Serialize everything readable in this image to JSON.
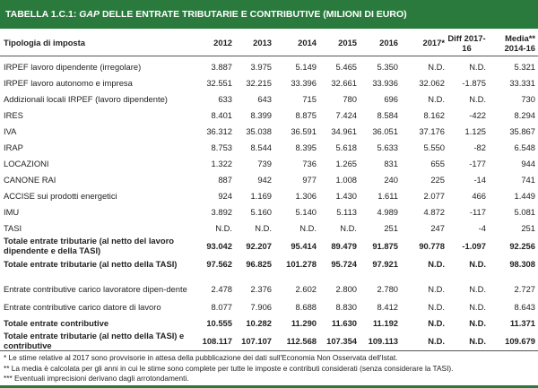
{
  "title": {
    "prefix": "TABELLA 1.C.1: ",
    "italic": "GAP",
    "rest": " DELLE ENTRATE TRIBUTARIE E CONTRIBUTIVE (MILIONI DI EURO)"
  },
  "headers": [
    "Tipologia di imposta",
    "2012",
    "2013",
    "2014",
    "2015",
    "2016",
    "2017*",
    "Diff 2017-16",
    "Media** 2014-16"
  ],
  "rows": [
    {
      "label": "IRPEF lavoro dipendente (irregolare)",
      "values": [
        "3.887",
        "3.975",
        "5.149",
        "5.465",
        "5.350",
        "N.D.",
        "N.D.",
        "5.321"
      ]
    },
    {
      "label": "IRPEF lavoro autonomo e impresa",
      "values": [
        "32.551",
        "32.215",
        "33.396",
        "32.661",
        "33.936",
        "32.062",
        "-1.875",
        "33.331"
      ]
    },
    {
      "label": "Addizionali locali IRPEF (lavoro dipendente)",
      "values": [
        "633",
        "643",
        "715",
        "780",
        "696",
        "N.D.",
        "N.D.",
        "730"
      ]
    },
    {
      "label": "IRES",
      "values": [
        "8.401",
        "8.399",
        "8.875",
        "7.424",
        "8.584",
        "8.162",
        "-422",
        "8.294"
      ]
    },
    {
      "label": "IVA",
      "values": [
        "36.312",
        "35.038",
        "36.591",
        "34.961",
        "36.051",
        "37.176",
        "1.125",
        "35.867"
      ]
    },
    {
      "label": "IRAP",
      "values": [
        "8.753",
        "8.544",
        "8.395",
        "5.618",
        "5.633",
        "5.550",
        "-82",
        "6.548"
      ]
    },
    {
      "label": "LOCAZIONI",
      "values": [
        "1.322",
        "739",
        "736",
        "1.265",
        "831",
        "655",
        "-177",
        "944"
      ]
    },
    {
      "label": "CANONE RAI",
      "values": [
        "887",
        "942",
        "977",
        "1.008",
        "240",
        "225",
        "-14",
        "741"
      ]
    },
    {
      "label": "ACCISE sui prodotti energetici",
      "values": [
        "924",
        "1.169",
        "1.306",
        "1.430",
        "1.611",
        "2.077",
        "466",
        "1.449"
      ]
    },
    {
      "label": "IMU",
      "values": [
        "3.892",
        "5.160",
        "5.140",
        "5.113",
        "4.989",
        "4.872",
        "-117",
        "5.081"
      ]
    },
    {
      "label": "TASI",
      "values": [
        "N.D.",
        "N.D.",
        "N.D.",
        "N.D.",
        "251",
        "247",
        "-4",
        "251"
      ]
    },
    {
      "label": "Totale entrate tributarie (al netto del lavoro dipendente e della TASI)",
      "values": [
        "93.042",
        "92.207",
        "95.414",
        "89.479",
        "91.875",
        "90.778",
        "-1.097",
        "92.256"
      ]
    },
    {
      "label": "Totale entrate tributarie (al netto della TASI)",
      "values": [
        "97.562",
        "96.825",
        "101.278",
        "95.724",
        "97.921",
        "N.D.",
        "N.D.",
        "98.308"
      ]
    },
    {
      "label": "Entrate contributive carico lavoratore dipen-dente",
      "values": [
        "2.478",
        "2.376",
        "2.602",
        "2.800",
        "2.780",
        "N.D.",
        "N.D.",
        "2.727"
      ]
    },
    {
      "label": "Entrate contributive carico datore di lavoro",
      "values": [
        "8.077",
        "7.906",
        "8.688",
        "8.830",
        "8.412",
        "N.D.",
        "N.D.",
        "8.643"
      ]
    },
    {
      "label": "Totale entrate contributive",
      "values": [
        "10.555",
        "10.282",
        "11.290",
        "11.630",
        "11.192",
        "N.D.",
        "N.D.",
        "11.371"
      ]
    },
    {
      "label": "Totale entrate tributarie (al netto della TASI) e contributive",
      "values": [
        "108.117",
        "107.107",
        "112.568",
        "107.354",
        "109.113",
        "N.D.",
        "N.D.",
        "109.679"
      ]
    }
  ],
  "notes": [
    "* Le stime relative al 2017 sono provvisorie in attesa della pubblicazione dei dati sull'Economia Non Osservata dell'Istat.",
    "** La media è calcolata per gli anni in cui le stime sono complete per tutte le imposte e contributi considerati (senza considerare la TASI).",
    "*** Eventuali imprecisioni derivano dagli arrotondamenti."
  ]
}
